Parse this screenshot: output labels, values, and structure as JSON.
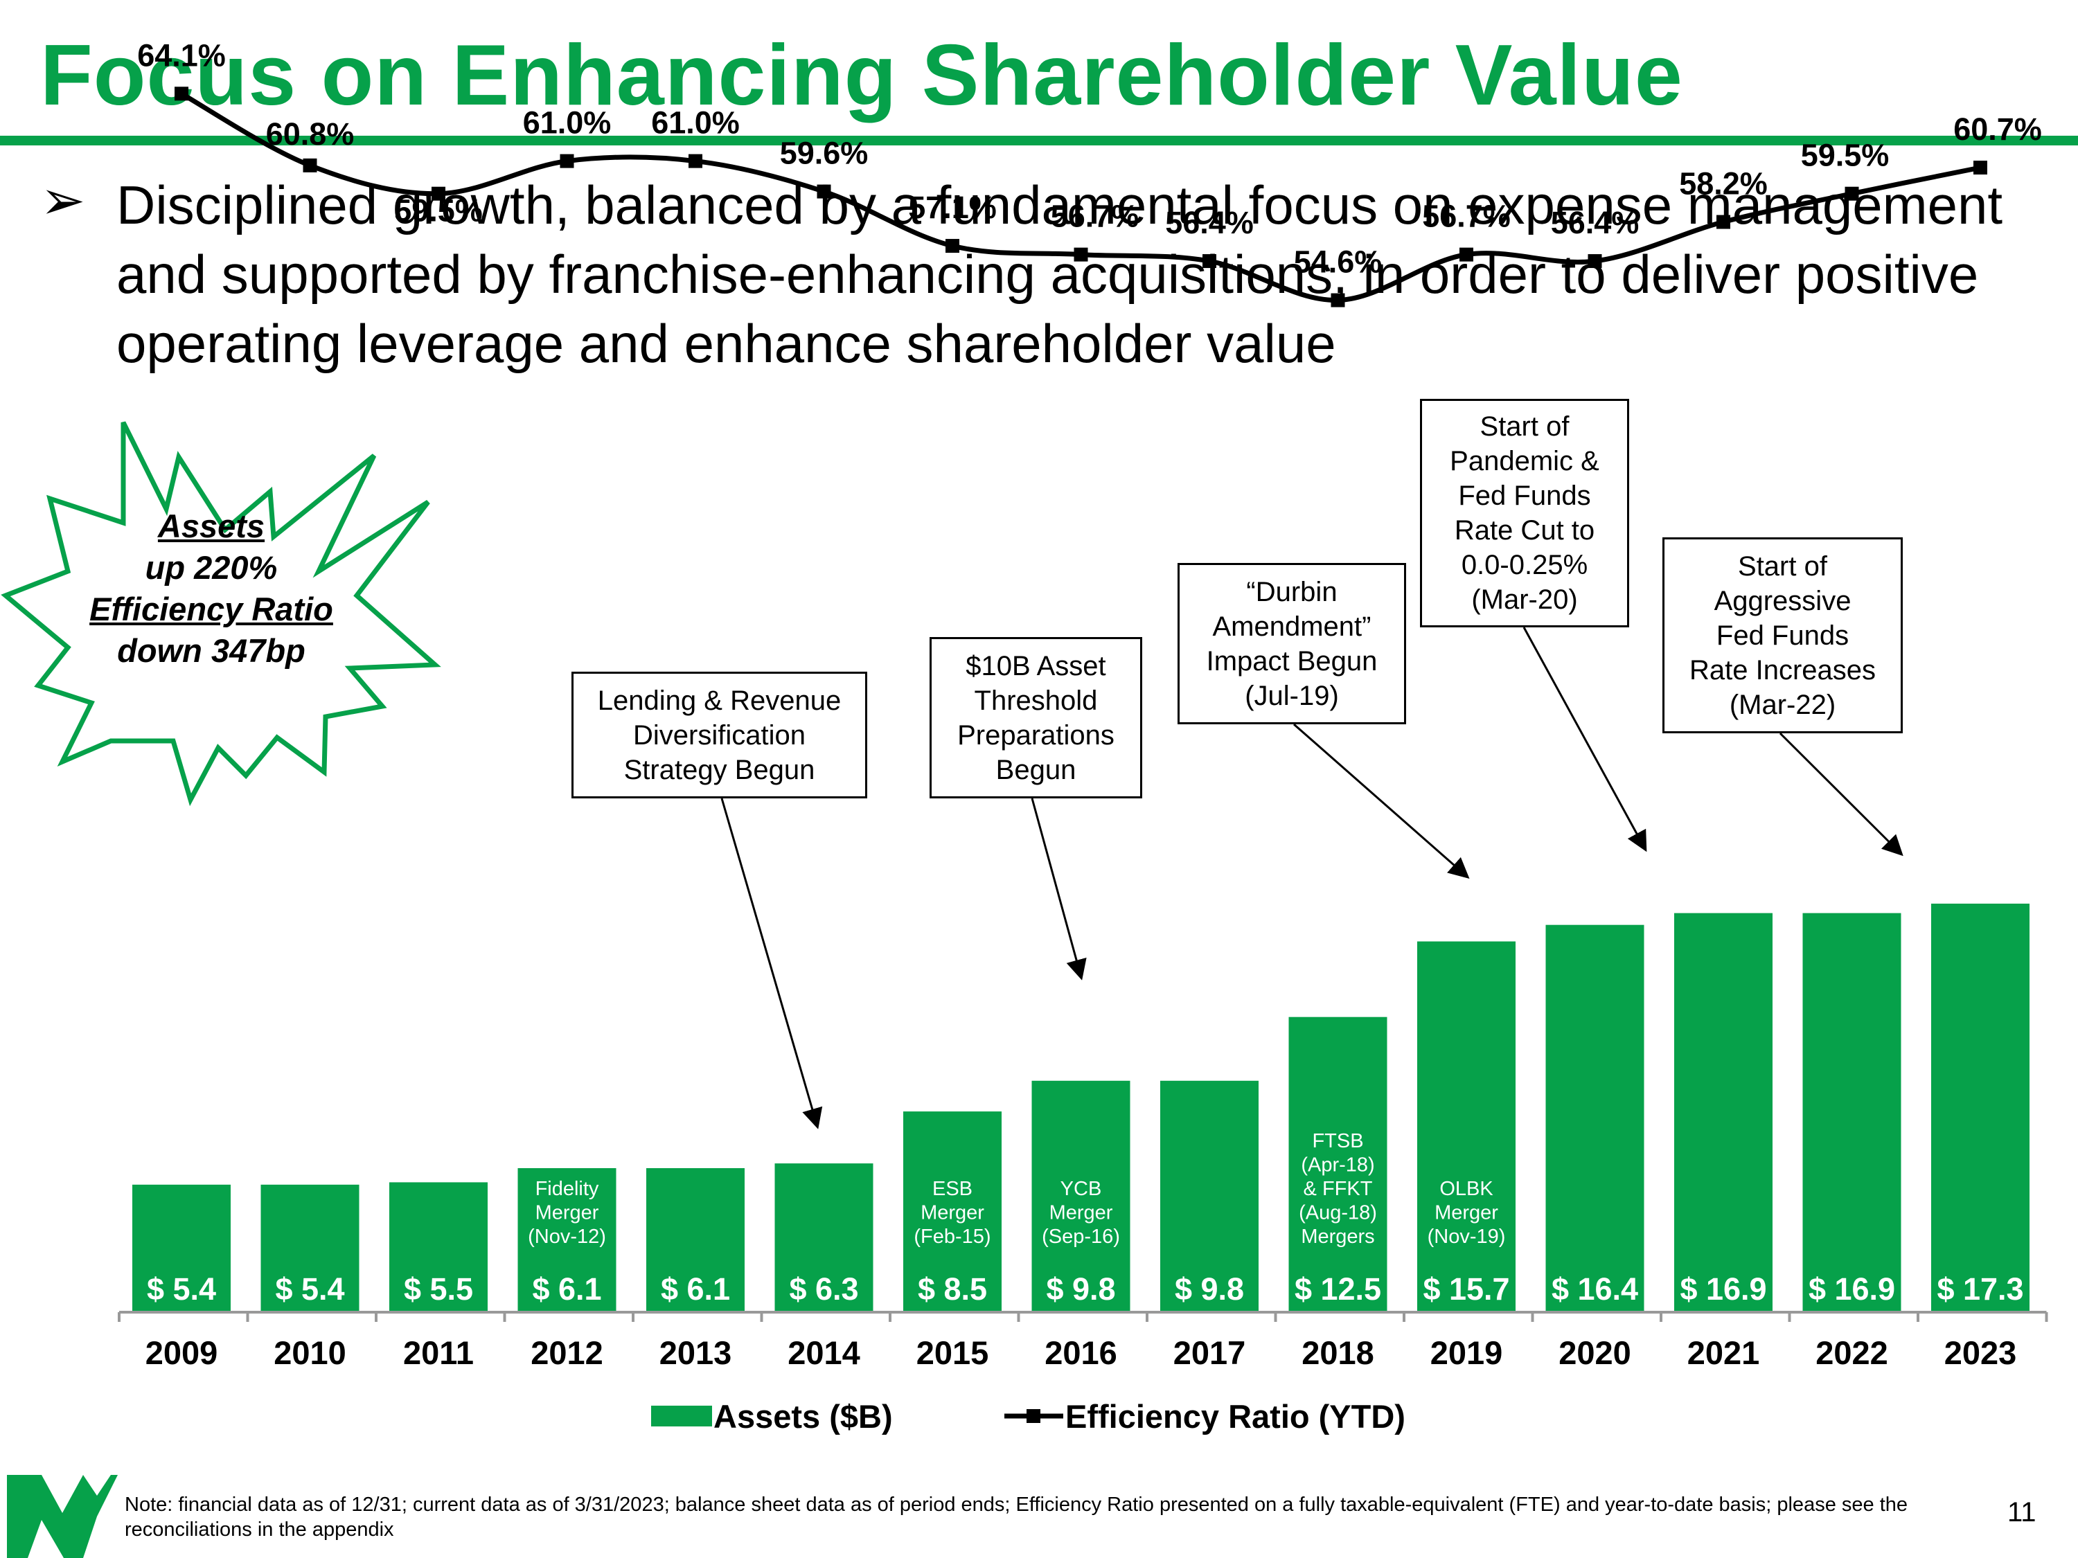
{
  "slide": {
    "title": "Focus on Enhancing Shareholder Value",
    "bullet": "Disciplined growth, balanced by a fundamental focus on expense management and supported by franchise-enhancing acquisitions, in order to deliver positive operating leverage and enhance shareholder value",
    "bullet_glyph": "➢",
    "page_number": "11",
    "footnote": "Note: financial data as of 12/31; current data as of 3/31/2023; balance sheet data as of period ends; Efficiency Ratio presented on a fully taxable-equivalent (FTE) and year-to-date basis; please see the reconciliations in the appendix"
  },
  "starburst": {
    "assets_label": "Assets",
    "assets_value": "up 220%",
    "efficiency_label": "Efficiency Ratio",
    "efficiency_value": "down 347bp"
  },
  "callouts": [
    {
      "text": "Lending & Revenue\nDiversification\nStrategy Begun",
      "target_year": "2014"
    },
    {
      "text": "$10B Asset\nThreshold\nPreparations\nBegun",
      "target_year": "2016"
    },
    {
      "text": "“Durbin\nAmendment”\nImpact Begun\n(Jul-19)",
      "target_year": "2019"
    },
    {
      "text": "Start of\nPandemic &\nFed Funds\nRate Cut to\n0.0-0.25%\n(Mar-20)",
      "target_year": "2020"
    },
    {
      "text": "Start of\nAggressive\nFed Funds\nRate Increases\n(Mar-22)",
      "target_year": "2022"
    }
  ],
  "chart_data": {
    "type": "bar",
    "title": "",
    "categories": [
      "2009",
      "2010",
      "2011",
      "2012",
      "2013",
      "2014",
      "2015",
      "2016",
      "2017",
      "2018",
      "2019",
      "2020",
      "2021",
      "2022",
      "2023"
    ],
    "series": [
      {
        "name": "Assets ($B)",
        "type": "bar",
        "values": [
          5.4,
          5.4,
          5.5,
          6.1,
          6.1,
          6.3,
          8.5,
          9.8,
          9.8,
          12.5,
          15.7,
          16.4,
          16.9,
          16.9,
          17.3
        ],
        "labels": [
          "$ 5.4",
          "$ 5.4",
          "$ 5.5",
          "$ 6.1",
          "$ 6.1",
          "$ 6.3",
          "$ 8.5",
          "$ 9.8",
          "$ 9.8",
          "$ 12.5",
          "$ 15.7",
          "$ 16.4",
          "$ 16.9",
          "$ 16.9",
          "$ 17.3"
        ]
      },
      {
        "name": "Efficiency Ratio (YTD)",
        "type": "line",
        "values": [
          64.1,
          60.8,
          59.5,
          61.0,
          61.0,
          59.6,
          57.1,
          56.7,
          56.4,
          54.6,
          56.7,
          56.4,
          58.2,
          59.5,
          60.7
        ],
        "labels": [
          "64.1%",
          "60.8%",
          "59.5%",
          "61.0%",
          "61.0%",
          "59.6%",
          "57.1%",
          "56.7%",
          "56.4%",
          "54.6%",
          "56.7%",
          "56.4%",
          "58.2%",
          "59.5%",
          "60.7%"
        ]
      }
    ],
    "bar_annotations": {
      "2012": "Fidelity\nMerger\n(Nov-12)",
      "2015": "ESB\nMerger\n(Feb-15)",
      "2016": "YCB\nMerger\n(Sep-16)",
      "2018": "FTSB\n(Apr-18)\n& FFKT\n(Aug-18)\nMergers",
      "2019": "OLBK\nMerger\n(Nov-19)"
    },
    "legend": [
      "Assets ($B)",
      "Efficiency Ratio (YTD)"
    ],
    "legend_position": "bottom",
    "colors": {
      "bar": "#06a14a",
      "line": "#000000",
      "accent": "#06a14a"
    }
  }
}
